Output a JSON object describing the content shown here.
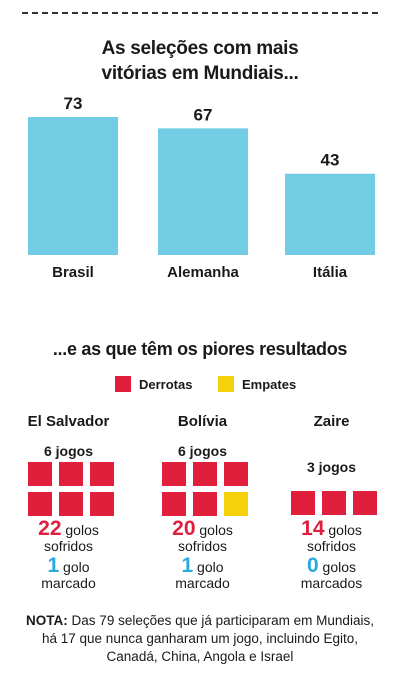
{
  "title": "As seleções com mais vitórias em Mundiais...",
  "subtitle": "...e as que têm os piores resultados",
  "chart_data": {
    "type": "bar",
    "title": "As seleções com mais vitórias em Mundiais...",
    "categories": [
      "Brasil",
      "Alemanha",
      "Itália"
    ],
    "values": [
      73,
      67,
      43
    ],
    "ylim": [
      0,
      73
    ],
    "grid": false,
    "bar_color": "#72cde4"
  },
  "legend": {
    "derrotas_label": "Derrotas",
    "empates_label": "Empates",
    "derrotas_color": "#e01f3d",
    "empates_color": "#f5d20c"
  },
  "teams": [
    {
      "name": "El Salvador",
      "games": "6 jogos",
      "derrotas": 6,
      "empates": 0,
      "sofridos_num": "22",
      "sofridos_label": "golos",
      "sofridos_line2": "sofridos",
      "marcados_num": "1",
      "marcados_label": "golo",
      "marcados_line2": "marcado"
    },
    {
      "name": "Bolívia",
      "games": "6 jogos",
      "derrotas": 5,
      "empates": 1,
      "sofridos_num": "20",
      "sofridos_label": "golos",
      "sofridos_line2": "sofridos",
      "marcados_num": "1",
      "marcados_label": "golo",
      "marcados_line2": "marcado"
    },
    {
      "name": "Zaire",
      "games": "3 jogos",
      "derrotas": 3,
      "empates": 0,
      "sofridos_num": "14",
      "sofridos_label": "golos",
      "sofridos_line2": "sofridos",
      "marcados_num": "0",
      "marcados_label": "golos",
      "marcados_line2": "marcados"
    }
  ],
  "note": {
    "label": "NOTA:",
    "text": "Das 79 seleções que já participaram em Mundiais, há 17 que nunca ganharam um jogo, incluindo Egito, Canadá, China, Angola e Israel"
  }
}
